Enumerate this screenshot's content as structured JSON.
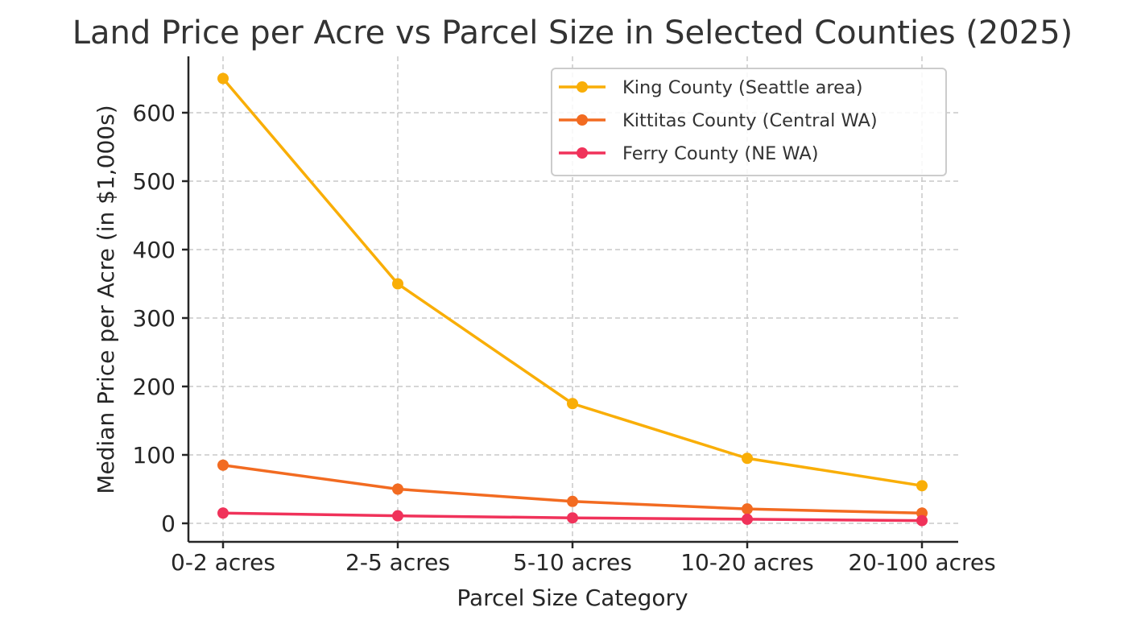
{
  "chart_data": {
    "type": "line",
    "title": "Land Price per Acre vs Parcel Size in Selected Counties (2025)",
    "xlabel": "Parcel Size Category",
    "ylabel": "Median Price per Acre (in $1,000s)",
    "categories": [
      "0-2 acres",
      "2-5 acres",
      "5-10 acres",
      "10-20 acres",
      "20-100 acres"
    ],
    "series": [
      {
        "name": "King County (Seattle area)",
        "color": "#F9AE07",
        "values": [
          650,
          350,
          175,
          95,
          55
        ]
      },
      {
        "name": "Kittitas County (Central WA)",
        "color": "#F26B21",
        "values": [
          85,
          50,
          32,
          21,
          15
        ]
      },
      {
        "name": "Ferry County (NE WA)",
        "color": "#F0325A",
        "values": [
          15,
          11,
          8,
          6,
          4
        ]
      }
    ],
    "yticks": [
      0,
      100,
      200,
      300,
      400,
      500,
      600
    ],
    "ylim": [
      -28,
      685
    ],
    "grid": true,
    "legend_position": "upper right"
  }
}
